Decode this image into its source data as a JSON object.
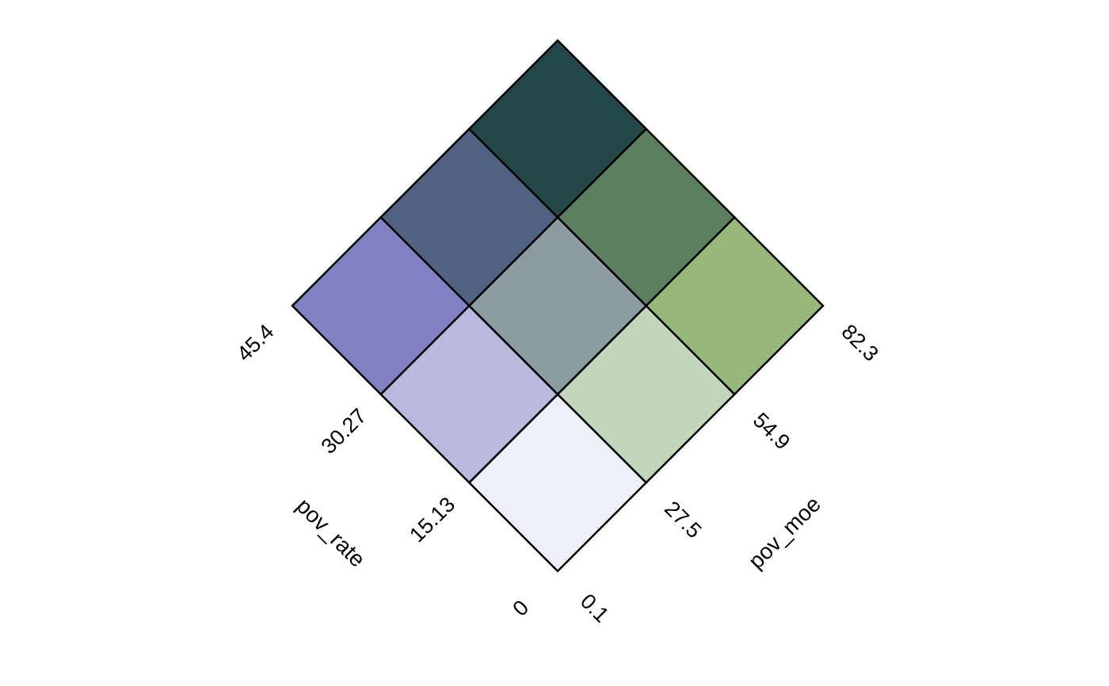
{
  "chart_data": {
    "type": "heatmap",
    "title": "",
    "x_variable": "pov_rate",
    "y_variable": "pov_moe",
    "x_breaks": [
      "0",
      "15.13",
      "30.27",
      "45.4"
    ],
    "y_breaks": [
      "0.1",
      "27.5",
      "54.9",
      "82.3"
    ],
    "cells": [
      {
        "x_class": 1,
        "y_class": 1,
        "color": "#EEEFF8"
      },
      {
        "x_class": 2,
        "y_class": 1,
        "color": "#B8B9DD"
      },
      {
        "x_class": 3,
        "y_class": 1,
        "color": "#8281C3"
      },
      {
        "x_class": 1,
        "y_class": 2,
        "color": "#C2D6BB"
      },
      {
        "x_class": 2,
        "y_class": 2,
        "color": "#8A9C9F"
      },
      {
        "x_class": 3,
        "y_class": 2,
        "color": "#506182"
      },
      {
        "x_class": 1,
        "y_class": 3,
        "color": "#97B87A"
      },
      {
        "x_class": 2,
        "y_class": 3,
        "color": "#5C805F"
      },
      {
        "x_class": 3,
        "y_class": 3,
        "color": "#234747"
      }
    ]
  }
}
